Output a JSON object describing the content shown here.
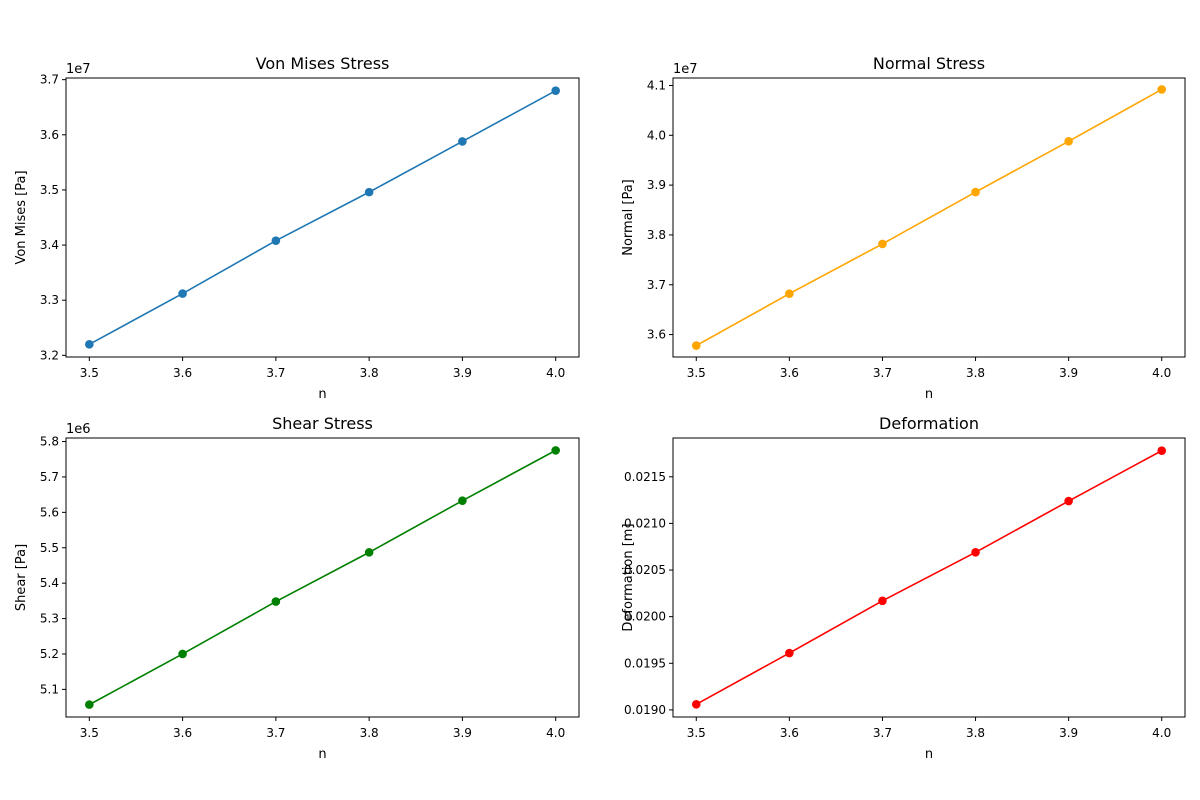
{
  "chart_data": [
    {
      "type": "line",
      "title": "Von Mises Stress",
      "xlabel": "n",
      "ylabel": "Von Mises [Pa]",
      "offset_text": "1e7",
      "color": "#1f77b4",
      "x": [
        3.5,
        3.6,
        3.7,
        3.8,
        3.9,
        4.0
      ],
      "y": [
        32200000,
        33120000,
        34080000,
        34960000,
        35880000,
        36800000
      ],
      "xlim": [
        3.475,
        4.025
      ],
      "ylim": [
        31970000,
        37030000
      ],
      "xticks": [
        3.5,
        3.6,
        3.7,
        3.8,
        3.9,
        4.0
      ],
      "xtick_labels": [
        "3.5",
        "3.6",
        "3.7",
        "3.8",
        "3.9",
        "4.0"
      ],
      "yticks": [
        32000000,
        33000000,
        34000000,
        35000000,
        36000000,
        37000000
      ],
      "ytick_labels": [
        "3.2",
        "3.3",
        "3.4",
        "3.5",
        "3.6",
        "3.7"
      ],
      "grid": false,
      "marker": "circle"
    },
    {
      "type": "line",
      "title": "Normal Stress",
      "xlabel": "n",
      "ylabel": "Normal [Pa]",
      "offset_text": "1e7",
      "color": "#ffa500",
      "x": [
        3.5,
        3.6,
        3.7,
        3.8,
        3.9,
        4.0
      ],
      "y": [
        35780000,
        36820000,
        37820000,
        38860000,
        39880000,
        40920000
      ],
      "xlim": [
        3.475,
        4.025
      ],
      "ylim": [
        35550000,
        41150000
      ],
      "xticks": [
        3.5,
        3.6,
        3.7,
        3.8,
        3.9,
        4.0
      ],
      "xtick_labels": [
        "3.5",
        "3.6",
        "3.7",
        "3.8",
        "3.9",
        "4.0"
      ],
      "yticks": [
        36000000,
        37000000,
        38000000,
        39000000,
        40000000,
        41000000
      ],
      "ytick_labels": [
        "3.6",
        "3.7",
        "3.8",
        "3.9",
        "4.0",
        "4.1"
      ],
      "grid": false,
      "marker": "circle"
    },
    {
      "type": "line",
      "title": "Shear Stress",
      "xlabel": "n",
      "ylabel": "Shear [Pa]",
      "offset_text": "1e6",
      "color": "#008000",
      "x": [
        3.5,
        3.6,
        3.7,
        3.8,
        3.9,
        4.0
      ],
      "y": [
        5057000,
        5200000,
        5348000,
        5487000,
        5633000,
        5775000
      ],
      "xlim": [
        3.475,
        4.025
      ],
      "ylim": [
        5022000,
        5810000
      ],
      "xticks": [
        3.5,
        3.6,
        3.7,
        3.8,
        3.9,
        4.0
      ],
      "xtick_labels": [
        "3.5",
        "3.6",
        "3.7",
        "3.8",
        "3.9",
        "4.0"
      ],
      "yticks": [
        5100000,
        5200000,
        5300000,
        5400000,
        5500000,
        5600000,
        5700000,
        5800000
      ],
      "ytick_labels": [
        "5.1",
        "5.2",
        "5.3",
        "5.4",
        "5.5",
        "5.6",
        "5.7",
        "5.8"
      ],
      "grid": false,
      "marker": "circle"
    },
    {
      "type": "line",
      "title": "Deformation",
      "xlabel": "n",
      "ylabel": "Deformation [m]",
      "offset_text": "",
      "color": "#ff0000",
      "x": [
        3.5,
        3.6,
        3.7,
        3.8,
        3.9,
        4.0
      ],
      "y": [
        0.01906,
        0.01961,
        0.02017,
        0.02069,
        0.02124,
        0.02178
      ],
      "xlim": [
        3.475,
        4.025
      ],
      "ylim": [
        0.018924,
        0.021916
      ],
      "xticks": [
        3.5,
        3.6,
        3.7,
        3.8,
        3.9,
        4.0
      ],
      "xtick_labels": [
        "3.5",
        "3.6",
        "3.7",
        "3.8",
        "3.9",
        "4.0"
      ],
      "yticks": [
        0.019,
        0.0195,
        0.02,
        0.0205,
        0.021,
        0.0215
      ],
      "ytick_labels": [
        "0.0190",
        "0.0195",
        "0.0200",
        "0.0205",
        "0.0210",
        "0.0215"
      ],
      "grid": false,
      "marker": "circle"
    }
  ]
}
